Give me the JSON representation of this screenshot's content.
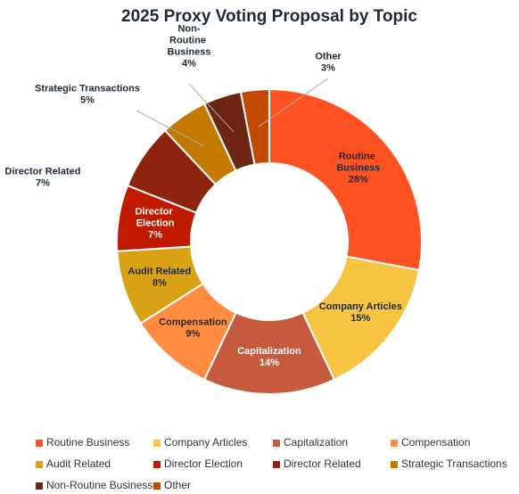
{
  "chart_data": {
    "type": "donut",
    "title": "2025 Proxy Voting Proposal by Topic",
    "categories": [
      "Routine Business",
      "Company Articles",
      "Capitalization",
      "Compensation",
      "Audit Related",
      "Director Election",
      "Director Related",
      "Strategic Transactions",
      "Non-Routine Business",
      "Other"
    ],
    "values": [
      28,
      15,
      14,
      9,
      8,
      7,
      7,
      5,
      4,
      3
    ],
    "value_labels": [
      "28%",
      "15%",
      "14%",
      "9%",
      "8%",
      "7%",
      "7%",
      "5%",
      "4%",
      "3%"
    ],
    "colors": [
      "#FF5222",
      "#F6C343",
      "#C55A3F",
      "#FF8C40",
      "#D8A214",
      "#C01A00",
      "#8E2410",
      "#C47A00",
      "#6E2612",
      "#C24A00"
    ]
  }
}
